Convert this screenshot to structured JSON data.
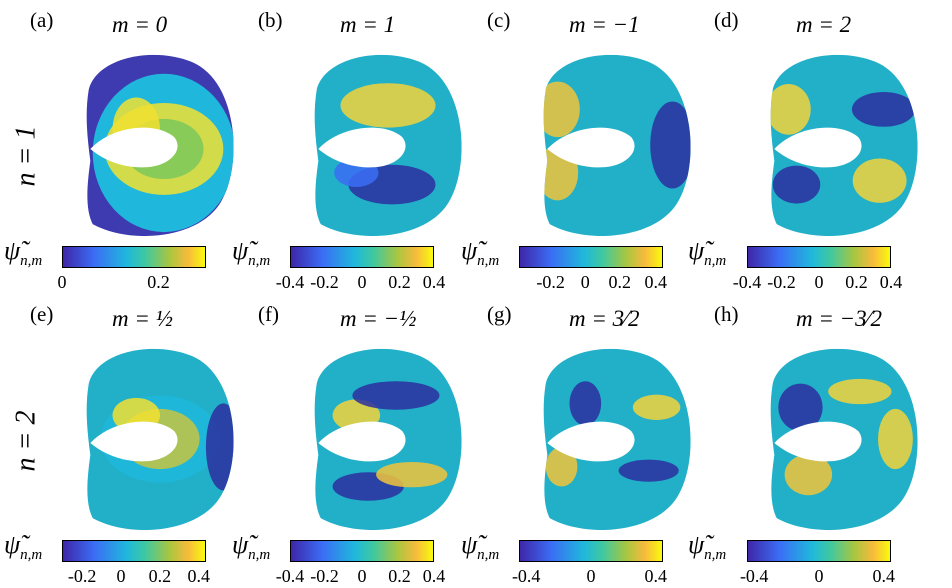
{
  "row_labels": [
    "n = 1",
    "n = 2"
  ],
  "colorbar_label": "ψ̃",
  "colorbar_sub": "n,m",
  "colors": {
    "low": "#3e26a8",
    "mid": "#21b0c8",
    "high": "#f9fb0e"
  },
  "panels": [
    {
      "label": "(a)",
      "title": "m = 0",
      "ticks": [
        "0",
        "0.2"
      ],
      "tick_pos": [
        0.0,
        0.67
      ],
      "pattern": "a"
    },
    {
      "label": "(b)",
      "title": "m = 1",
      "ticks": [
        "-0.4",
        "-0.2",
        "0",
        "0.2",
        "0.4"
      ],
      "tick_pos": [
        0.0,
        0.24,
        0.5,
        0.76,
        1.0
      ],
      "pattern": "b"
    },
    {
      "label": "(c)",
      "title": "m = −1",
      "ticks": [
        "-0.2",
        "0",
        "0.2",
        "0.4"
      ],
      "tick_pos": [
        0.22,
        0.46,
        0.7,
        0.95
      ],
      "pattern": "c"
    },
    {
      "label": "(d)",
      "title": "m = 2",
      "ticks": [
        "-0.4",
        "-0.2",
        "0",
        "0.2",
        "0.4"
      ],
      "tick_pos": [
        0.0,
        0.24,
        0.5,
        0.76,
        1.0
      ],
      "pattern": "d"
    },
    {
      "label": "(e)",
      "title": "m = ½",
      "ticks": [
        "-0.2",
        "0",
        "0.2",
        "0.4"
      ],
      "tick_pos": [
        0.14,
        0.41,
        0.68,
        0.95
      ],
      "pattern": "e"
    },
    {
      "label": "(f)",
      "title": "m = −½",
      "ticks": [
        "-0.4",
        "-0.2",
        "0",
        "0.2",
        "0.4"
      ],
      "tick_pos": [
        0.0,
        0.24,
        0.5,
        0.76,
        1.0
      ],
      "pattern": "f"
    },
    {
      "label": "(g)",
      "title": "m = 3⁄2",
      "ticks": [
        "-0.4",
        "0",
        "0.4"
      ],
      "tick_pos": [
        0.05,
        0.5,
        0.95
      ],
      "pattern": "g"
    },
    {
      "label": "(h)",
      "title": "m = −3⁄2",
      "ticks": [
        "-0.4",
        "0",
        "0.4"
      ],
      "tick_pos": [
        0.05,
        0.5,
        0.95
      ],
      "pattern": "h"
    }
  ]
}
